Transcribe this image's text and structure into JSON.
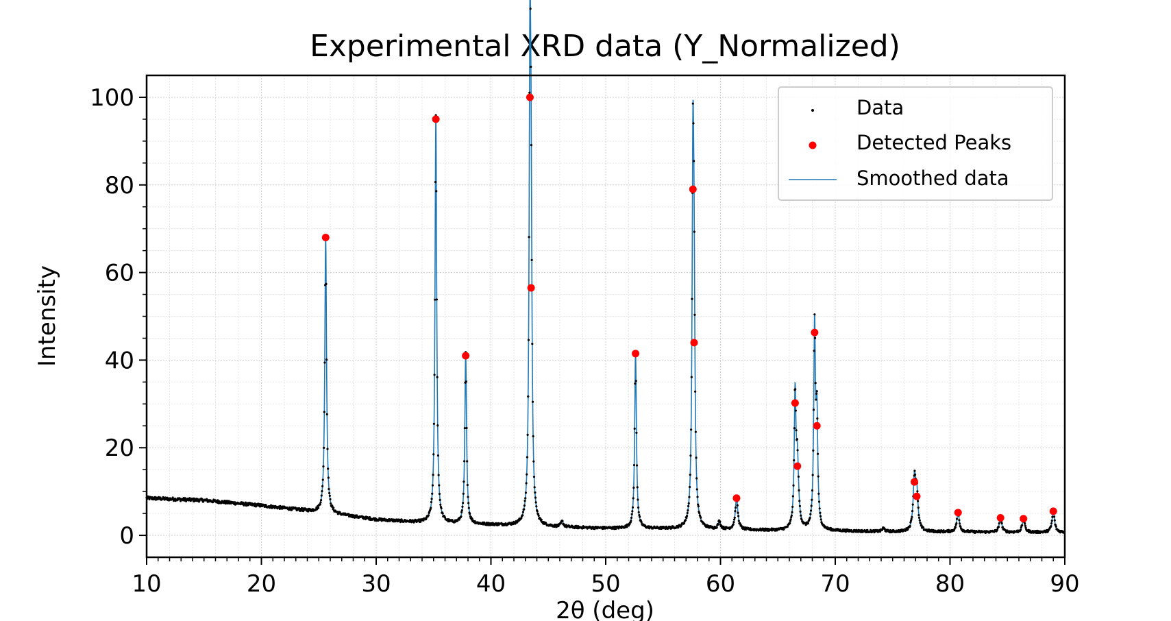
{
  "chart_data": {
    "type": "scatter",
    "title": "Experimental XRD data (Y_Normalized)",
    "xlabel": "2θ (deg)",
    "ylabel": "Intensity",
    "xlim": [
      10,
      90
    ],
    "ylim": [
      -5,
      105
    ],
    "x_ticks": [
      10,
      20,
      30,
      40,
      50,
      60,
      70,
      80,
      90
    ],
    "y_ticks": [
      0,
      20,
      40,
      60,
      80,
      100
    ],
    "grid": true,
    "legend_position": "top-right",
    "colors": {
      "data": "#000000",
      "peaks": "#ff0000",
      "smoothed": "#1f77b4"
    },
    "series": [
      {
        "name": "Data",
        "kind": "scatter-small"
      },
      {
        "name": "Detected Peaks",
        "kind": "scatter-large"
      },
      {
        "name": "Smoothed data",
        "kind": "line"
      }
    ],
    "baseline": [
      [
        10,
        8.5
      ],
      [
        15,
        8.0
      ],
      [
        20,
        6.8
      ],
      [
        25,
        5.3
      ],
      [
        30,
        3.6
      ],
      [
        35,
        2.7
      ],
      [
        40,
        2.4
      ],
      [
        45,
        1.9
      ],
      [
        50,
        1.6
      ],
      [
        55,
        1.5
      ],
      [
        60,
        1.3
      ],
      [
        65,
        1.1
      ],
      [
        70,
        1.0
      ],
      [
        75,
        0.8
      ],
      [
        80,
        0.8
      ],
      [
        85,
        0.7
      ],
      [
        90,
        0.7
      ]
    ],
    "peaks": [
      {
        "x": 25.6,
        "y": 68.0
      },
      {
        "x": 35.2,
        "y": 95.0
      },
      {
        "x": 37.8,
        "y": 41.0
      },
      {
        "x": 43.4,
        "y": 100.0
      },
      {
        "x": 43.5,
        "y": 56.5
      },
      {
        "x": 52.6,
        "y": 41.5
      },
      {
        "x": 57.6,
        "y": 79.0
      },
      {
        "x": 57.7,
        "y": 44.0
      },
      {
        "x": 61.4,
        "y": 8.5
      },
      {
        "x": 66.5,
        "y": 30.2
      },
      {
        "x": 66.7,
        "y": 15.8
      },
      {
        "x": 68.2,
        "y": 46.3
      },
      {
        "x": 68.4,
        "y": 25.0
      },
      {
        "x": 76.9,
        "y": 12.2
      },
      {
        "x": 77.1,
        "y": 8.9
      },
      {
        "x": 80.7,
        "y": 5.2
      },
      {
        "x": 84.4,
        "y": 4.0
      },
      {
        "x": 86.4,
        "y": 3.8
      },
      {
        "x": 89.0,
        "y": 5.5
      }
    ],
    "minor_peaks": [
      {
        "x": 46.2,
        "y": 3.0
      },
      {
        "x": 59.9,
        "y": 3.0
      },
      {
        "x": 74.2,
        "y": 1.6
      }
    ]
  }
}
